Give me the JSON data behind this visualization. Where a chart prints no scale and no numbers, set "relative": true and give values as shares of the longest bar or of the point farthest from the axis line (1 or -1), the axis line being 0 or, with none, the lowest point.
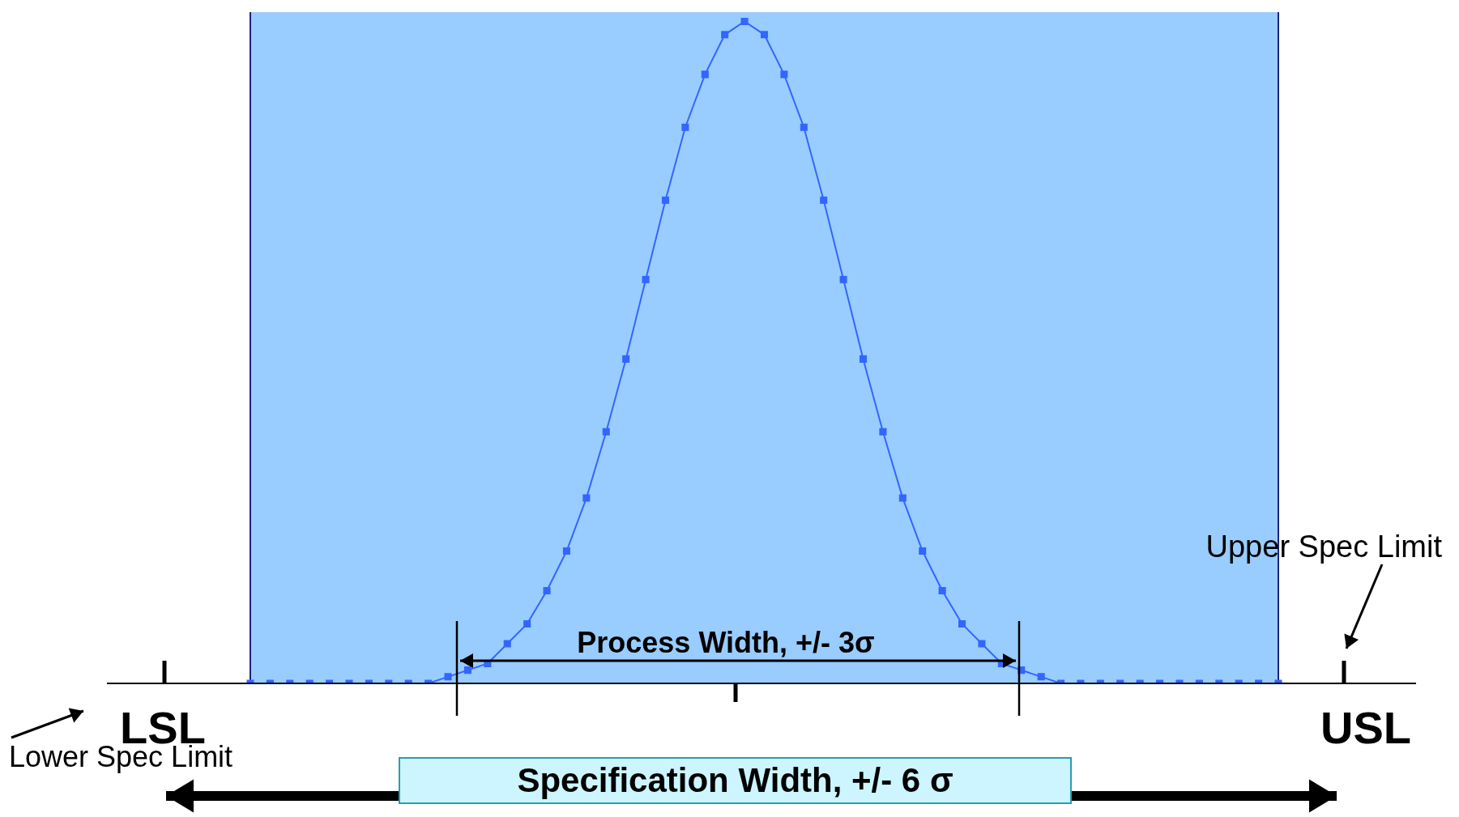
{
  "chart_data": {
    "type": "line",
    "relative": true,
    "grid": false,
    "legend": false,
    "marker": "square",
    "tick_labels": false,
    "categories": [
      null,
      null,
      null,
      null,
      null,
      null,
      null,
      null,
      null,
      null,
      null,
      null,
      null,
      null,
      null,
      null,
      null,
      null,
      null,
      null,
      null,
      null,
      null,
      null,
      null,
      null,
      null,
      null,
      null,
      null,
      null,
      null,
      null,
      null,
      null,
      null,
      null,
      null,
      null,
      null,
      null,
      null,
      null,
      null,
      null,
      null,
      null,
      null,
      null,
      null,
      null,
      null,
      null
    ],
    "series": [
      {
        "color": "#3366ff",
        "values": [
          0,
          0,
          0,
          0,
          0,
          0,
          0,
          0,
          0,
          0,
          0.01,
          0.02,
          0.03,
          0.06,
          0.09,
          0.14,
          0.2,
          0.28,
          0.38,
          0.49,
          0.61,
          0.73,
          0.84,
          0.92,
          0.98,
          1,
          0.98,
          0.92,
          0.84,
          0.73,
          0.61,
          0.49,
          0.38,
          0.28,
          0.2,
          0.14,
          0.09,
          0.06,
          0.03,
          0.02,
          0.01,
          0,
          0,
          0,
          0,
          0,
          0,
          0,
          0,
          0,
          0,
          0,
          0
        ]
      }
    ],
    "annotations": [
      "Process Width, +/- 3σ",
      "LSL",
      "USL",
      "Lower Spec Limit",
      "Upper Spec Limit",
      "Specification Width, +/- 6 σ"
    ]
  }
}
